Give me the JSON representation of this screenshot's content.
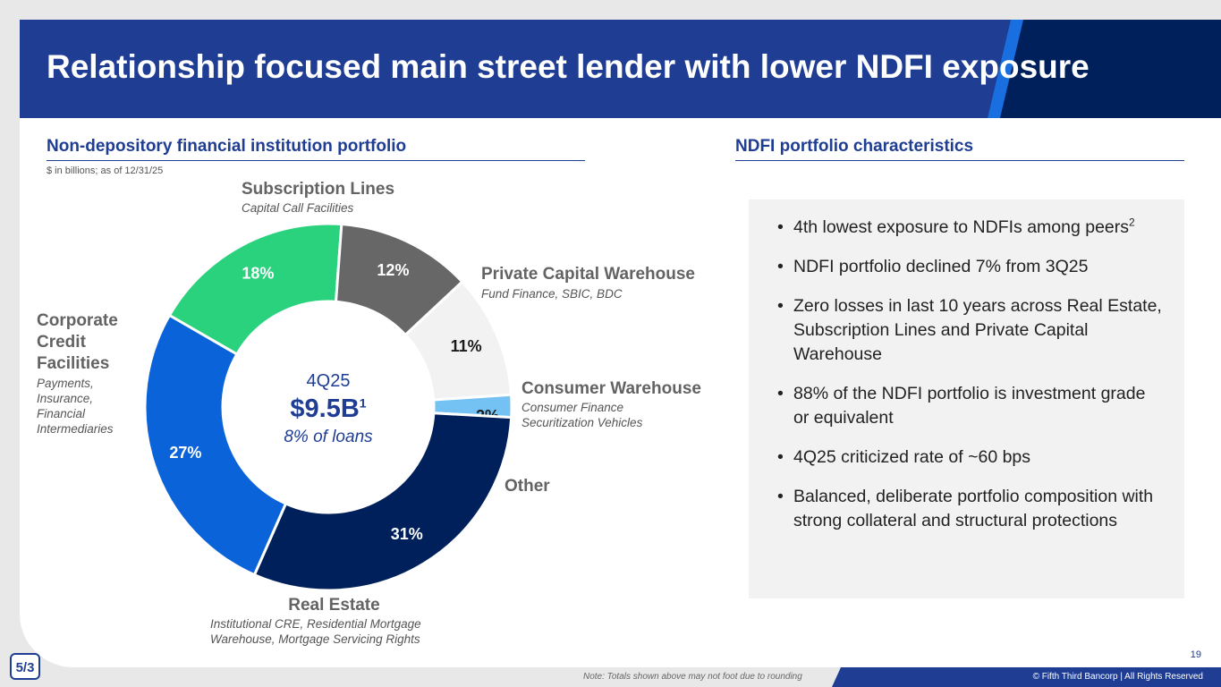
{
  "title": "Relationship focused main street lender with lower NDFI exposure",
  "left_section": {
    "title": "Non-depository financial institution portfolio",
    "subnote": "$ in billions; as of 12/31/25"
  },
  "right_section": {
    "title": "NDFI portfolio characteristics"
  },
  "center": {
    "period": "4Q25",
    "value": "$9.5B",
    "value_footnote": "1",
    "share": "8% of loans"
  },
  "segment_labels": {
    "subscription": {
      "title": "Subscription Lines",
      "desc": [
        "Capital Call Facilities"
      ]
    },
    "private_capital": {
      "title": "Private Capital Warehouse",
      "desc": [
        "Fund Finance, SBIC, BDC"
      ]
    },
    "consumer": {
      "title": "Consumer Warehouse",
      "desc": [
        "Consumer Finance",
        "Securitization Vehicles"
      ]
    },
    "other": {
      "title": "Other",
      "desc": []
    },
    "real_estate": {
      "title": "Real Estate",
      "desc": [
        "Institutional CRE, Residential Mortgage",
        "Warehouse, Mortgage Servicing Rights"
      ]
    },
    "corporate": {
      "title": [
        "Corporate",
        "Credit",
        "Facilities"
      ],
      "desc": [
        "Payments,",
        "Insurance,",
        "Financial",
        "Intermediaries"
      ]
    }
  },
  "chart_data": {
    "type": "pie",
    "title": "",
    "categories": [
      "Subscription Lines",
      "Private Capital Warehouse",
      "Consumer Warehouse",
      "Other",
      "Real Estate",
      "Corporate Credit Facilities"
    ],
    "values": [
      18,
      12,
      11,
      2,
      31,
      27
    ],
    "value_labels": [
      "18%",
      "12%",
      "11%",
      "2%",
      "31%",
      "27%"
    ],
    "colors": [
      "#2ad27e",
      "#676767",
      "#f2f2f2",
      "#74c2f4",
      "#00205b",
      "#0a63d9"
    ],
    "label_colors": [
      "#ffffff",
      "#ffffff",
      "#1a1a1a",
      "#1a1a1a",
      "#ffffff",
      "#ffffff"
    ],
    "start_angle_deg": -60,
    "donut": true,
    "legend": "none"
  },
  "characteristics": [
    {
      "text": "4th lowest exposure to NDFIs among peers",
      "sup": "2"
    },
    {
      "text": "NDFI portfolio declined 7% from 3Q25",
      "sup": ""
    },
    {
      "text": "Zero losses in last 10 years across Real Estate, Subscription Lines and Private Capital Warehouse",
      "sup": ""
    },
    {
      "text": "88% of the NDFI portfolio is investment grade or equivalent",
      "sup": ""
    },
    {
      "text": "4Q25 criticized rate of ~60 bps",
      "sup": ""
    },
    {
      "text": "Balanced, deliberate portfolio composition with strong collateral and structural protections",
      "sup": ""
    }
  ],
  "page_number": "19",
  "footnote": "Note: Totals shown above may not foot due to rounding",
  "copyright": "© Fifth Third Bancorp | All Rights Reserved",
  "colors": {
    "brand_blue": "#1f3e93",
    "navy": "#00205b"
  },
  "logo_icon": "fifth-third-logo-icon"
}
